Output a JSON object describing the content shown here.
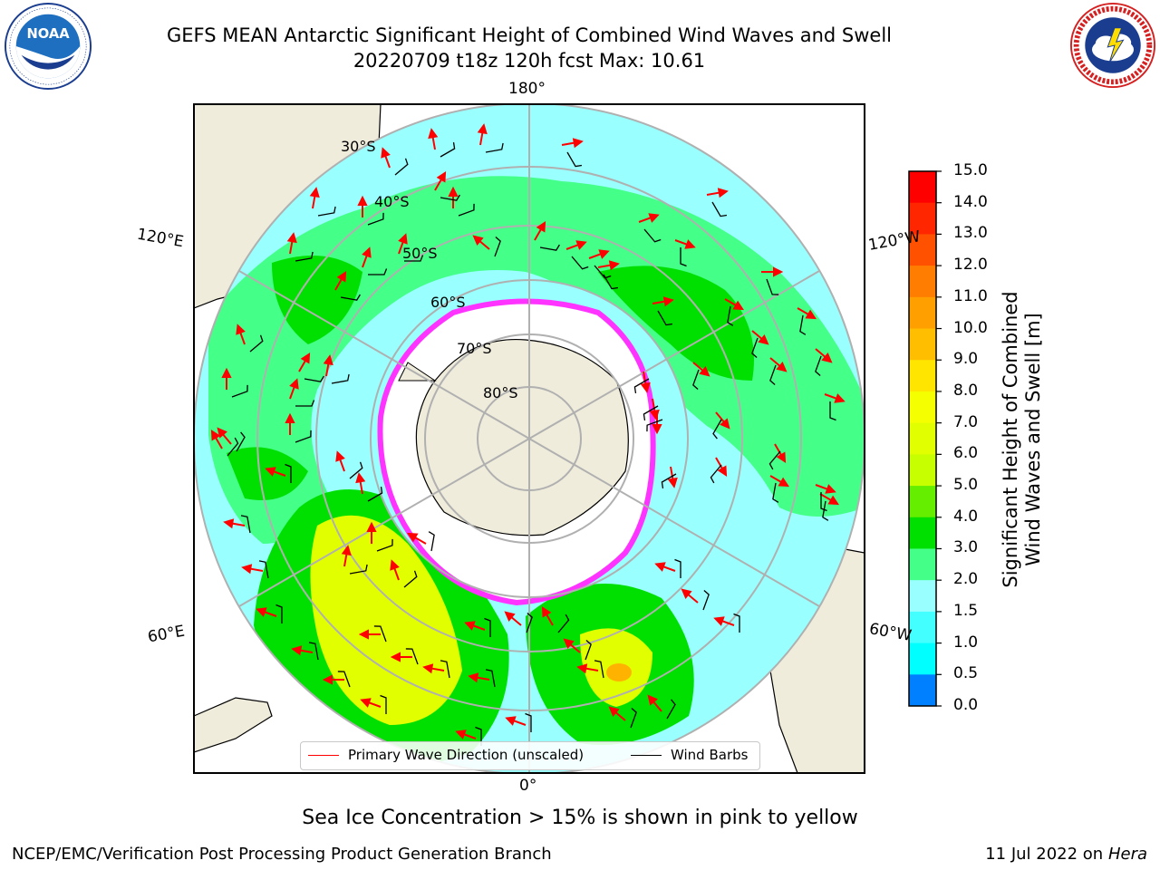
{
  "header": {
    "title_line1": "GEFS MEAN Antarctic Significant Height of Combined Wind Waves and Swell",
    "title_line2": "20220709 t18z 120h fcst   Max: 10.61"
  },
  "logos": {
    "left": {
      "name": "NOAA",
      "ring_text": "NATIONAL OCEANIC AND ATMOSPHERIC ADMINISTRATION · U.S. DEPARTMENT OF COMMERCE"
    },
    "right": {
      "ring_text": "NATIONAL WEATHER SERVICE"
    }
  },
  "map": {
    "projection": "south-polar-stereographic",
    "longitude_labels": {
      "top": "180°",
      "bottom": "0°",
      "upper_left": "120°E",
      "lower_left": "60°E",
      "upper_right": "120°W",
      "lower_right": "60°W"
    },
    "latitude_labels": [
      "30°S",
      "40°S",
      "50°S",
      "60°S",
      "70°S",
      "80°S"
    ],
    "colors": {
      "land": "#efecdc",
      "ocean_0_2": "#99ffff",
      "ocean_3_4": "#4dff80",
      "ocean_4_5": "#00e619",
      "ocean_8_9": "#ecff00",
      "ocean_10_11": "#ffb300",
      "sea_ice_edge": "#ff33ff",
      "wave_arrow": "#ff0000",
      "wind_barb": "#000000"
    }
  },
  "legend": {
    "primary_wave_direction": "Primary Wave Direction (unscaled)",
    "wind_barbs": "Wind Barbs"
  },
  "colorbar": {
    "label_line1": "Significant Height of Combined",
    "label_line2": "Wind Waves and Swell [m]",
    "ticks": [
      "15.0",
      "14.0",
      "13.0",
      "12.0",
      "11.0",
      "10.0",
      "9.0",
      "8.0",
      "7.0",
      "6.0",
      "5.0",
      "4.0",
      "3.0",
      "2.0",
      "1.5",
      "1.0",
      "0.5",
      "0.0"
    ],
    "colors": [
      "#ff0000",
      "#ff2600",
      "#ff5100",
      "#ff7d00",
      "#ff9f00",
      "#ffbf00",
      "#ffe500",
      "#f6ff00",
      "#e2ff00",
      "#c8ff00",
      "#66ee00",
      "#00e000",
      "#44ff88",
      "#99ffff",
      "#44ffff",
      "#00ffff",
      "#0080ff",
      "#0000ff"
    ]
  },
  "footer": {
    "sea_ice_note": "Sea Ice Concentration > 15% is shown in pink to yellow",
    "credit_left": "NCEP/EMC/Verification Post Processing Product Generation Branch",
    "date_text": "11 Jul 2022 on ",
    "machine": "Hera"
  }
}
